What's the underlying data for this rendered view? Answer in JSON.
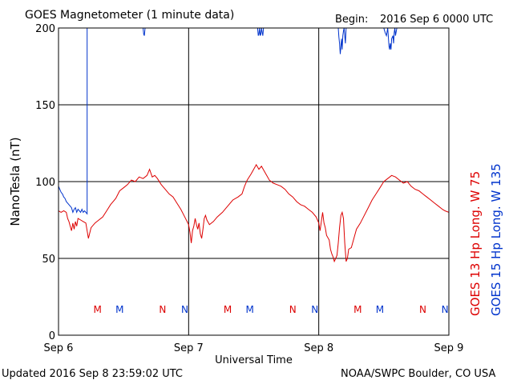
{
  "header": {
    "title": "GOES Magnetometer (1 minute data)",
    "begin_label": "Begin:",
    "begin_value": "2016 Sep 6 0000 UTC"
  },
  "footer": {
    "updated": "Updated 2016 Sep  8 23:59:02 UTC",
    "source": "NOAA/SWPC Boulder, CO USA"
  },
  "colors": {
    "goes13": "#dd0000",
    "goes15": "#0033cc",
    "frame": "#000000",
    "background": "#ffffff"
  },
  "chart_data": {
    "type": "line",
    "title": "GOES Magnetometer (1 minute data)",
    "xlabel": "Universal Time",
    "ylabel": "NanoTesla (nT)",
    "ylim": [
      0,
      200
    ],
    "xlim_days": [
      0,
      3
    ],
    "x_ticks": [
      {
        "day": 0,
        "label": "Sep 6"
      },
      {
        "day": 1,
        "label": "Sep 7"
      },
      {
        "day": 2,
        "label": "Sep 8"
      },
      {
        "day": 3,
        "label": "Sep 9"
      }
    ],
    "y_ticks": [
      0,
      50,
      100,
      150,
      200
    ],
    "grid": true,
    "legend": [
      {
        "text": "GOES 13 Hp  Long. W 75",
        "color": "#dd0000",
        "position": "right"
      },
      {
        "text": "GOES 15 Hp  Long. W 135",
        "color": "#0033cc",
        "position": "right"
      }
    ],
    "markers": [
      {
        "day": 0.3,
        "label": "M",
        "color": "#dd0000"
      },
      {
        "day": 0.47,
        "label": "M",
        "color": "#0033cc"
      },
      {
        "day": 0.8,
        "label": "N",
        "color": "#dd0000"
      },
      {
        "day": 0.97,
        "label": "N",
        "color": "#0033cc"
      },
      {
        "day": 1.3,
        "label": "M",
        "color": "#dd0000"
      },
      {
        "day": 1.47,
        "label": "M",
        "color": "#0033cc"
      },
      {
        "day": 1.8,
        "label": "N",
        "color": "#dd0000"
      },
      {
        "day": 1.97,
        "label": "N",
        "color": "#0033cc"
      },
      {
        "day": 2.3,
        "label": "M",
        "color": "#dd0000"
      },
      {
        "day": 2.47,
        "label": "M",
        "color": "#0033cc"
      },
      {
        "day": 2.8,
        "label": "N",
        "color": "#dd0000"
      },
      {
        "day": 2.97,
        "label": "N",
        "color": "#0033cc"
      }
    ],
    "series": [
      {
        "name": "GOES 13 Hp",
        "color": "#dd0000",
        "points": [
          [
            0.0,
            81
          ],
          [
            0.02,
            80
          ],
          [
            0.04,
            81
          ],
          [
            0.06,
            80
          ],
          [
            0.07,
            76
          ],
          [
            0.08,
            74
          ],
          [
            0.09,
            71
          ],
          [
            0.1,
            68
          ],
          [
            0.11,
            73
          ],
          [
            0.12,
            69
          ],
          [
            0.13,
            74
          ],
          [
            0.14,
            71
          ],
          [
            0.15,
            76
          ],
          [
            0.17,
            75
          ],
          [
            0.19,
            74
          ],
          [
            0.21,
            73
          ],
          [
            0.22,
            68
          ],
          [
            0.23,
            63
          ],
          [
            0.25,
            70
          ],
          [
            0.28,
            73
          ],
          [
            0.31,
            75
          ],
          [
            0.34,
            77
          ],
          [
            0.37,
            81
          ],
          [
            0.4,
            85
          ],
          [
            0.44,
            89
          ],
          [
            0.47,
            94
          ],
          [
            0.5,
            96
          ],
          [
            0.53,
            98
          ],
          [
            0.56,
            101
          ],
          [
            0.59,
            100
          ],
          [
            0.62,
            103
          ],
          [
            0.65,
            102
          ],
          [
            0.68,
            104
          ],
          [
            0.7,
            108
          ],
          [
            0.72,
            103
          ],
          [
            0.74,
            104
          ],
          [
            0.76,
            102
          ],
          [
            0.79,
            98
          ],
          [
            0.82,
            95
          ],
          [
            0.85,
            92
          ],
          [
            0.88,
            90
          ],
          [
            0.91,
            86
          ],
          [
            0.94,
            82
          ],
          [
            0.97,
            77
          ],
          [
            1.0,
            72
          ],
          [
            1.01,
            67
          ],
          [
            1.02,
            60
          ],
          [
            1.03,
            68
          ],
          [
            1.04,
            71
          ],
          [
            1.05,
            76
          ],
          [
            1.06,
            72
          ],
          [
            1.07,
            69
          ],
          [
            1.08,
            73
          ],
          [
            1.09,
            66
          ],
          [
            1.1,
            63
          ],
          [
            1.11,
            69
          ],
          [
            1.12,
            76
          ],
          [
            1.13,
            78
          ],
          [
            1.14,
            75
          ],
          [
            1.16,
            72
          ],
          [
            1.19,
            74
          ],
          [
            1.22,
            77
          ],
          [
            1.26,
            80
          ],
          [
            1.3,
            84
          ],
          [
            1.34,
            88
          ],
          [
            1.38,
            90
          ],
          [
            1.41,
            92
          ],
          [
            1.43,
            97
          ],
          [
            1.45,
            101
          ],
          [
            1.48,
            105
          ],
          [
            1.5,
            108
          ],
          [
            1.52,
            111
          ],
          [
            1.54,
            108
          ],
          [
            1.56,
            110
          ],
          [
            1.58,
            107
          ],
          [
            1.6,
            104
          ],
          [
            1.62,
            101
          ],
          [
            1.65,
            99
          ],
          [
            1.68,
            98
          ],
          [
            1.71,
            97
          ],
          [
            1.74,
            95
          ],
          [
            1.77,
            92
          ],
          [
            1.8,
            90
          ],
          [
            1.83,
            87
          ],
          [
            1.86,
            85
          ],
          [
            1.89,
            84
          ],
          [
            1.92,
            82
          ],
          [
            1.95,
            80
          ],
          [
            1.98,
            77
          ],
          [
            2.0,
            73
          ],
          [
            2.01,
            68
          ],
          [
            2.02,
            74
          ],
          [
            2.03,
            80
          ],
          [
            2.04,
            73
          ],
          [
            2.05,
            70
          ],
          [
            2.06,
            65
          ],
          [
            2.08,
            62
          ],
          [
            2.09,
            56
          ],
          [
            2.1,
            53
          ],
          [
            2.11,
            51
          ],
          [
            2.12,
            48
          ],
          [
            2.13,
            50
          ],
          [
            2.14,
            52
          ],
          [
            2.15,
            60
          ],
          [
            2.16,
            70
          ],
          [
            2.17,
            78
          ],
          [
            2.18,
            80
          ],
          [
            2.19,
            76
          ],
          [
            2.2,
            60
          ],
          [
            2.21,
            48
          ],
          [
            2.22,
            50
          ],
          [
            2.23,
            56
          ],
          [
            2.25,
            57
          ],
          [
            2.27,
            63
          ],
          [
            2.29,
            69
          ],
          [
            2.32,
            73
          ],
          [
            2.35,
            78
          ],
          [
            2.38,
            83
          ],
          [
            2.41,
            88
          ],
          [
            2.44,
            92
          ],
          [
            2.47,
            96
          ],
          [
            2.5,
            100
          ],
          [
            2.53,
            102
          ],
          [
            2.56,
            104
          ],
          [
            2.59,
            103
          ],
          [
            2.62,
            101
          ],
          [
            2.65,
            99
          ],
          [
            2.68,
            100
          ],
          [
            2.71,
            97
          ],
          [
            2.74,
            95
          ],
          [
            2.77,
            94
          ],
          [
            2.8,
            92
          ],
          [
            2.83,
            90
          ],
          [
            2.86,
            88
          ],
          [
            2.89,
            86
          ],
          [
            2.92,
            84
          ],
          [
            2.95,
            82
          ],
          [
            2.97,
            81
          ],
          [
            3.0,
            80
          ]
        ]
      },
      {
        "name": "GOES 15 Hp",
        "segments": [
          [
            [
              0.0,
              97
            ],
            [
              0.01,
              95
            ],
            [
              0.02,
              93
            ],
            [
              0.03,
              92
            ],
            [
              0.04,
              90
            ],
            [
              0.05,
              89
            ],
            [
              0.06,
              87
            ],
            [
              0.07,
              86
            ],
            [
              0.08,
              85
            ],
            [
              0.09,
              84
            ],
            [
              0.1,
              83
            ],
            [
              0.11,
              80
            ],
            [
              0.12,
              82
            ],
            [
              0.13,
              83
            ],
            [
              0.14,
              80
            ],
            [
              0.15,
              82
            ],
            [
              0.16,
              81
            ],
            [
              0.17,
              80
            ],
            [
              0.18,
              82
            ],
            [
              0.19,
              80
            ],
            [
              0.2,
              81
            ],
            [
              0.21,
              80
            ],
            [
              0.22,
              79
            ],
            [
              0.22,
              200
            ]
          ],
          [
            [
              0.65,
              200
            ],
            [
              0.655,
              196
            ],
            [
              0.66,
              195
            ],
            [
              0.665,
              200
            ]
          ],
          [
            [
              1.53,
              200
            ],
            [
              1.535,
              195
            ],
            [
              1.54,
              196
            ],
            [
              1.545,
              200
            ],
            [
              1.55,
              195
            ],
            [
              1.555,
              196
            ],
            [
              1.56,
              200
            ],
            [
              1.565,
              197
            ],
            [
              1.57,
              195
            ],
            [
              1.575,
              200
            ]
          ],
          [
            [
              2.15,
              200
            ],
            [
              2.155,
              194
            ],
            [
              2.16,
              190
            ],
            [
              2.165,
              183
            ],
            [
              2.17,
              188
            ],
            [
              2.175,
              193
            ],
            [
              2.18,
              186
            ],
            [
              2.185,
              195
            ],
            [
              2.19,
              198
            ],
            [
              2.195,
              200
            ],
            [
              2.205,
              190
            ],
            [
              2.21,
              200
            ]
          ],
          [
            [
              2.5,
              200
            ],
            [
              2.51,
              197
            ],
            [
              2.52,
              195
            ],
            [
              2.53,
              200
            ],
            [
              2.54,
              188
            ],
            [
              2.545,
              186
            ],
            [
              2.55,
              190
            ],
            [
              2.555,
              186
            ],
            [
              2.56,
              193
            ],
            [
              2.57,
              195
            ],
            [
              2.575,
              190
            ],
            [
              2.58,
              197
            ],
            [
              2.585,
              200
            ],
            [
              2.59,
              195
            ],
            [
              2.6,
              200
            ]
          ]
        ],
        "color": "#0033cc"
      }
    ]
  }
}
